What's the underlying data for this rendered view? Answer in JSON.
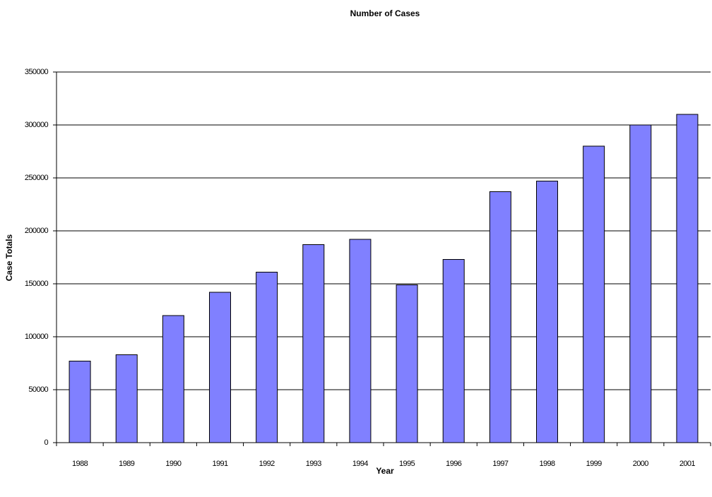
{
  "chart_data": {
    "type": "bar",
    "title": "Number of Cases",
    "x_label": "Year",
    "y_label": "Case Totals",
    "categories": [
      "1988",
      "1989",
      "1990",
      "1991",
      "1992",
      "1993",
      "1994",
      "1995",
      "1996",
      "1997",
      "1998",
      "1999",
      "2000",
      "2001"
    ],
    "values": [
      77000,
      83000,
      120000,
      142000,
      161000,
      187000,
      192000,
      149000,
      173000,
      237000,
      247000,
      280000,
      300000,
      310000
    ],
    "color": "#8080ff",
    "ylim": [
      0,
      350000
    ],
    "yticks": [
      0,
      50000,
      100000,
      150000,
      200000,
      250000,
      300000,
      350000
    ],
    "grid": true
  }
}
